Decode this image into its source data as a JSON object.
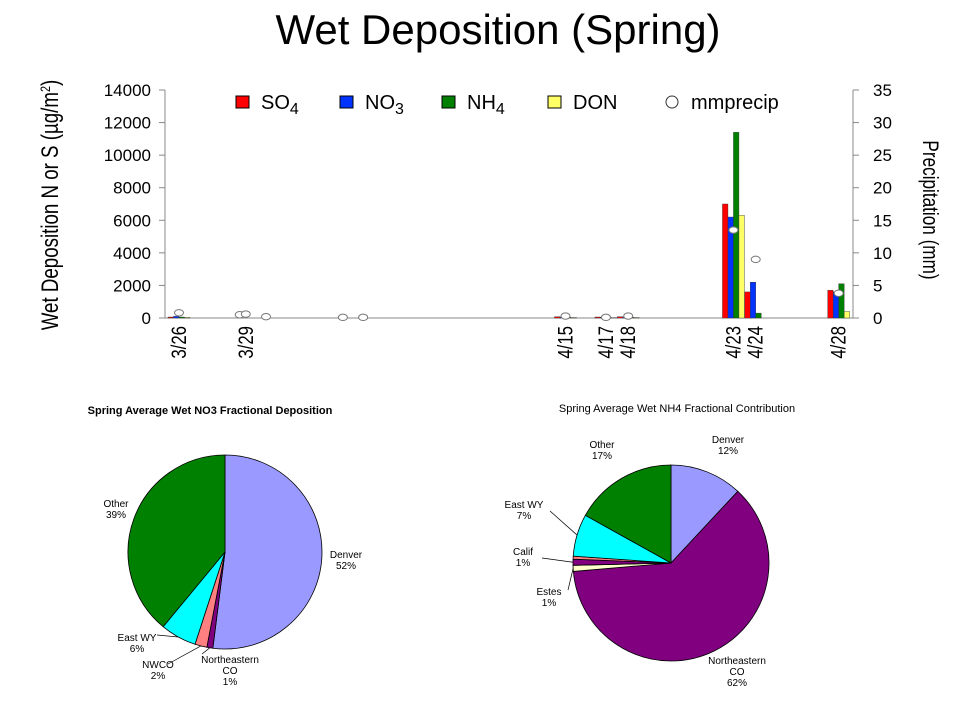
{
  "title": "Wet Deposition (Spring)",
  "colors": {
    "SO4": "#ff0000",
    "NO3": "#0033ff",
    "NH4": "#008000",
    "DON": "#ffff66",
    "denver": "#9999ff",
    "northeastern": "#800080",
    "estes": "#ffffcc",
    "calif": "#800080",
    "eastwy": "#00ffff",
    "other": "#008000",
    "nwco": "#ff8080",
    "calif_nh4": "#800080"
  },
  "chart_data": [
    {
      "type": "bar",
      "title": "",
      "ylabel_left": "Wet Deposition N or S (µg/m²)",
      "ylabel_left_parts": {
        "prefix": "Wet Deposition N or S (",
        "mu": "µ",
        "unit": "g/m",
        "sup": "2",
        "suffix": ")"
      },
      "ylabel_right": "Precipitation (mm)",
      "ylim_left": [
        0,
        14000
      ],
      "ylim_right": [
        0,
        35
      ],
      "yticks_left": [
        "0",
        "2000",
        "4000",
        "6000",
        "8000",
        "10000",
        "12000",
        "14000"
      ],
      "yticks_right": [
        "0",
        "5",
        "10",
        "15",
        "20",
        "25",
        "30",
        "35"
      ],
      "xtick_labels": [
        "3/26",
        "3/29",
        "4/15",
        "4/17",
        "4/18",
        "4/23",
        "4/24",
        "4/28"
      ],
      "legend_position": "top",
      "legend": [
        {
          "key": "SO4",
          "base": "SO",
          "sub": "4"
        },
        {
          "key": "NO3",
          "base": "NO",
          "sub": "3"
        },
        {
          "key": "NH4",
          "base": "NH",
          "sub": "4"
        },
        {
          "key": "DON",
          "base": "DON",
          "sub": ""
        },
        {
          "key": "mmprecip",
          "base": "mmprecip",
          "sub": ""
        }
      ],
      "samples": [
        {
          "date": "3/26",
          "slot": 0,
          "SO4": 60,
          "NO3": 100,
          "NH4": 60,
          "DON": 40,
          "precip": 0.8
        },
        {
          "date": "",
          "slot": 3,
          "SO4": 0,
          "NO3": 0,
          "NH4": 0,
          "DON": 0,
          "precip": 0.5
        },
        {
          "date": "3/29",
          "slot": 3.3,
          "SO4": 0,
          "NO3": 0,
          "NH4": 0,
          "DON": 0,
          "precip": 0.6
        },
        {
          "date": "",
          "slot": 4.3,
          "SO4": 0,
          "NO3": 0,
          "NH4": 0,
          "DON": 0,
          "precip": 0.2
        },
        {
          "date": "",
          "slot": 8.1,
          "SO4": 0,
          "NO3": 0,
          "NH4": 0,
          "DON": 0,
          "precip": 0.1
        },
        {
          "date": "",
          "slot": 9.1,
          "SO4": 0,
          "NO3": 0,
          "NH4": 0,
          "DON": 0,
          "precip": 0.1
        },
        {
          "date": "4/15",
          "slot": 19.1,
          "SO4": 80,
          "NO3": 60,
          "NH4": 40,
          "DON": 30,
          "precip": 0.3
        },
        {
          "date": "4/17",
          "slot": 21.1,
          "SO4": 60,
          "NO3": 40,
          "NH4": 30,
          "DON": 20,
          "precip": 0.1
        },
        {
          "date": "4/18",
          "slot": 22.2,
          "SO4": 80,
          "NO3": 60,
          "NH4": 40,
          "DON": 30,
          "precip": 0.3
        },
        {
          "date": "4/23",
          "slot": 27.4,
          "SO4": 7000,
          "NO3": 6200,
          "NH4": 11400,
          "DON": 6300,
          "precip": 13.5
        },
        {
          "date": "4/24",
          "slot": 28.5,
          "SO4": 1600,
          "NO3": 2200,
          "NH4": 300,
          "DON": 0,
          "precip": 9
        },
        {
          "date": "4/28",
          "slot": 32.6,
          "SO4": 1700,
          "NO3": 1600,
          "NH4": 2100,
          "DON": 400,
          "precip": 3.8
        }
      ]
    },
    {
      "type": "pie",
      "title": "Spring Average Wet NO3 Fractional Deposition",
      "slices": [
        {
          "label": "Denver",
          "value": 52,
          "text": "52%",
          "colorKey": "denver"
        },
        {
          "label": "Northeastern CO",
          "value": 1,
          "text": "1%",
          "colorKey": "northeastern"
        },
        {
          "label": "NWCO",
          "value": 2,
          "text": "2%",
          "colorKey": "nwco"
        },
        {
          "label": "East WY",
          "value": 6,
          "text": "6%",
          "colorKey": "eastwy"
        },
        {
          "label": "Other",
          "value": 39,
          "text": "39%",
          "colorKey": "other"
        }
      ]
    },
    {
      "type": "pie",
      "title": "Spring Average Wet NH4 Fractional Contribution",
      "slices": [
        {
          "label": "Denver",
          "value": 12,
          "text": "12%",
          "colorKey": "denver"
        },
        {
          "label": "Northeastern CO",
          "value": 62,
          "text": "62%",
          "colorKey": "northeastern"
        },
        {
          "label": "Estes",
          "value": 1,
          "text": "1%",
          "colorKey": "estes"
        },
        {
          "label": "Calif",
          "value": 1,
          "text": "1%",
          "colorKey": "calif_nh4"
        },
        {
          "label": "",
          "value": 0.5,
          "text": "",
          "colorKey": "nwco"
        },
        {
          "label": "East WY",
          "value": 7,
          "text": "7%",
          "colorKey": "eastwy"
        },
        {
          "label": "Other",
          "value": 17,
          "text": "17%",
          "colorKey": "other"
        }
      ]
    }
  ]
}
